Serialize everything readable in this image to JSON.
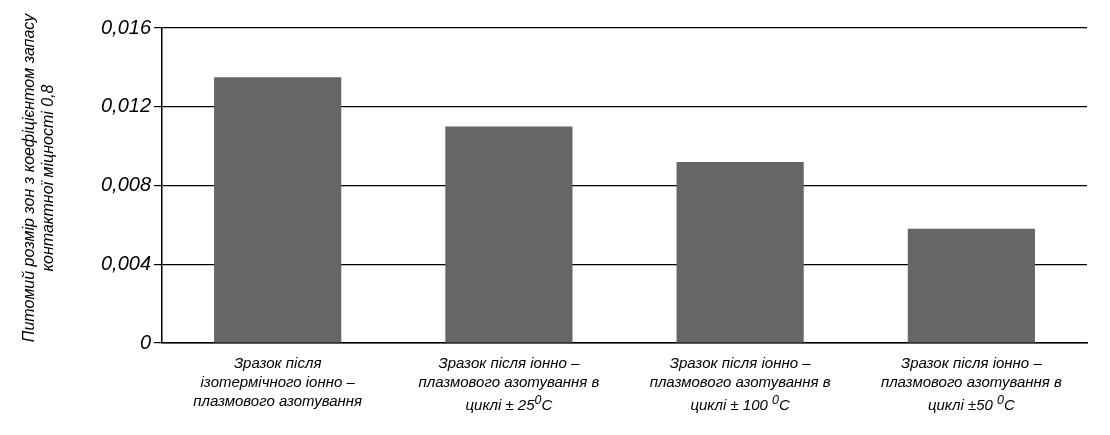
{
  "chart_data": {
    "type": "bar",
    "ylabel": "Питомий розмір зон з коефіцієнтом запасу контактної міцності 0,8",
    "categories": [
      "Зразок після ізотермічного іонно – плазмового азотування",
      "Зразок після іонно – плазмового азотування в циклі ± 25$^{0}$С",
      "Зразок після іонно – плазмового азотування в циклі ± 100 $^{0}$С",
      "Зразок після іонно – плазмового азотування в циклі ±50 $^{0}$С"
    ],
    "values": [
      0.0135,
      0.011,
      0.0092,
      0.0058
    ],
    "color": "#666666",
    "ylim": [
      0,
      0.016
    ],
    "yticks": [
      0,
      {
        "value": 0.004,
        "label": "0,004"
      },
      {
        "value": 0.008,
        "label": "0,008"
      },
      {
        "value": 0.012,
        "label": "0,012"
      },
      {
        "value": 0.016,
        "label": "0,016"
      }
    ],
    "grid": "y",
    "legend": false
  }
}
